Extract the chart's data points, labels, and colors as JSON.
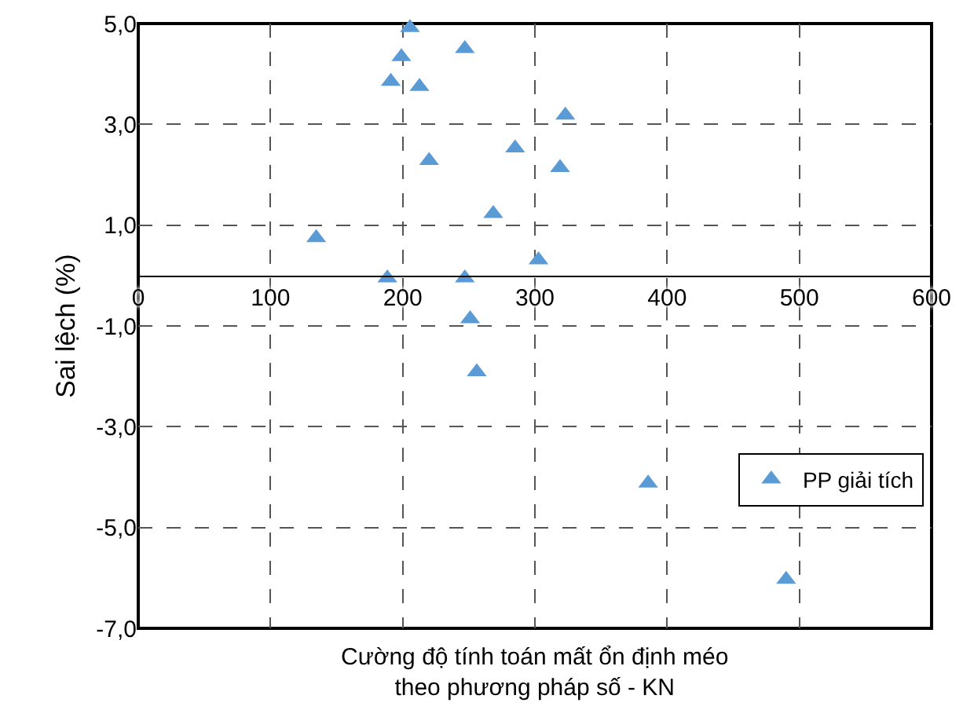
{
  "chart_data": {
    "type": "scatter",
    "xlabel": "Cường độ tính toán mất ổn định méo\ntheo phương pháp số - KN",
    "ylabel": "Sai lệch (%)",
    "x": [
      205.5,
      199,
      191,
      212.7,
      247,
      323,
      220,
      285,
      319,
      268.5,
      134.6,
      302.7,
      188.4,
      247,
      251,
      256,
      385.6,
      490
    ],
    "series": [
      {
        "name": "PP giải tích",
        "color": "#5b9bd5",
        "values": [
          4.92,
          4.34,
          3.85,
          3.75,
          4.5,
          3.18,
          2.28,
          2.53,
          2.14,
          1.23,
          0.75,
          0.31,
          -0.05,
          -0.05,
          -0.86,
          -1.91,
          -4.12,
          -6.03
        ]
      }
    ],
    "xlim": [
      0,
      600
    ],
    "xticks": [
      0,
      100,
      200,
      300,
      400,
      500,
      600
    ],
    "ylim": [
      -7,
      5
    ],
    "yticks": [
      {
        "value": -7,
        "label": "-7,0"
      },
      {
        "value": -5,
        "label": "-5,0"
      },
      {
        "value": -3,
        "label": "-3,0"
      },
      {
        "value": -1,
        "label": "-1,0"
      },
      {
        "value": 1,
        "label": "1,0"
      },
      {
        "value": 3,
        "label": "3,0"
      },
      {
        "value": 5,
        "label": "5,0"
      }
    ],
    "grid": true,
    "legend": "bottom right",
    "marker": "triangle"
  }
}
